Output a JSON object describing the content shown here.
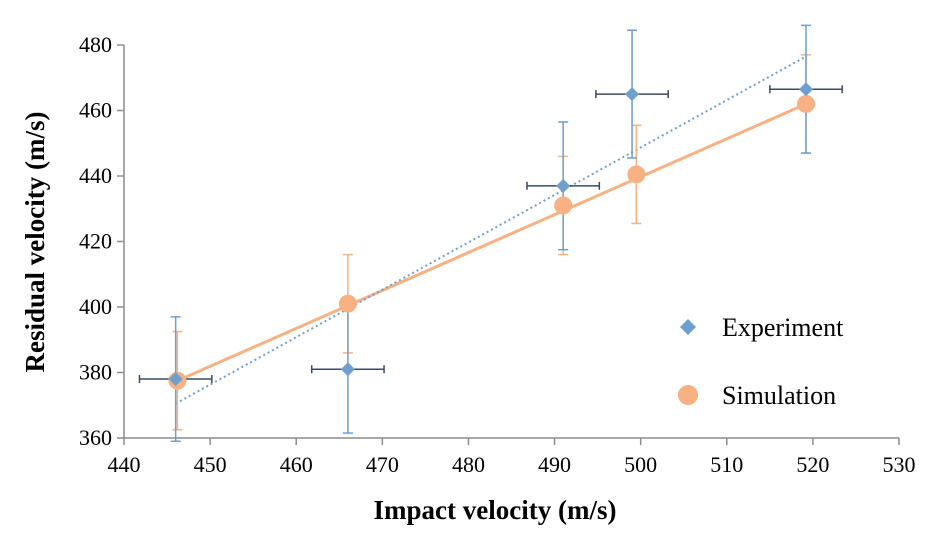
{
  "chart_data": {
    "type": "scatter",
    "xlabel": "Impact velocity (m/s)",
    "ylabel": "Residual velocity (m/s)",
    "xlim": [
      440,
      530
    ],
    "ylim": [
      360,
      480
    ],
    "xticks": [
      440,
      450,
      460,
      470,
      480,
      490,
      500,
      510,
      520,
      530
    ],
    "yticks": [
      360,
      380,
      400,
      420,
      440,
      460,
      480
    ],
    "grid": false,
    "legend_position": "right",
    "series": [
      {
        "name": "Experiment",
        "marker": "diamond",
        "color": "#6f9fcd",
        "points": [
          {
            "x": 446.0,
            "y": 378.0,
            "yerr": 19.0,
            "xerr": 0.7
          },
          {
            "x": 466.0,
            "y": 381.0,
            "yerr": 19.5,
            "xerr": 0.7
          },
          {
            "x": 491.0,
            "y": 437.0,
            "yerr": 19.5,
            "xerr": 0.7
          },
          {
            "x": 499.0,
            "y": 465.0,
            "yerr": 19.5,
            "xerr": 0.7
          },
          {
            "x": 519.2,
            "y": 466.5,
            "yerr": 19.5,
            "xerr": 0.7
          }
        ],
        "trendline": {
          "style": "dotted",
          "color": "#6f9fcd",
          "x": [
            446.0,
            519.2
          ],
          "y": [
            370.5,
            476.5
          ]
        }
      },
      {
        "name": "Simulation",
        "marker": "circle",
        "color": "#f7b183",
        "points": [
          {
            "x": 446.2,
            "y": 377.5,
            "yerr": 15.0
          },
          {
            "x": 466.0,
            "y": 401.0,
            "yerr": 15.0
          },
          {
            "x": 491.0,
            "y": 431.0,
            "yerr": 15.0
          },
          {
            "x": 499.5,
            "y": 440.5,
            "yerr": 15.0
          },
          {
            "x": 519.2,
            "y": 462.0,
            "yerr": 15.0
          }
        ],
        "trendline": {
          "style": "solid",
          "color": "#f7b183",
          "x": [
            446.2,
            519.2
          ],
          "y": [
            377.5,
            462.0
          ]
        }
      }
    ]
  }
}
